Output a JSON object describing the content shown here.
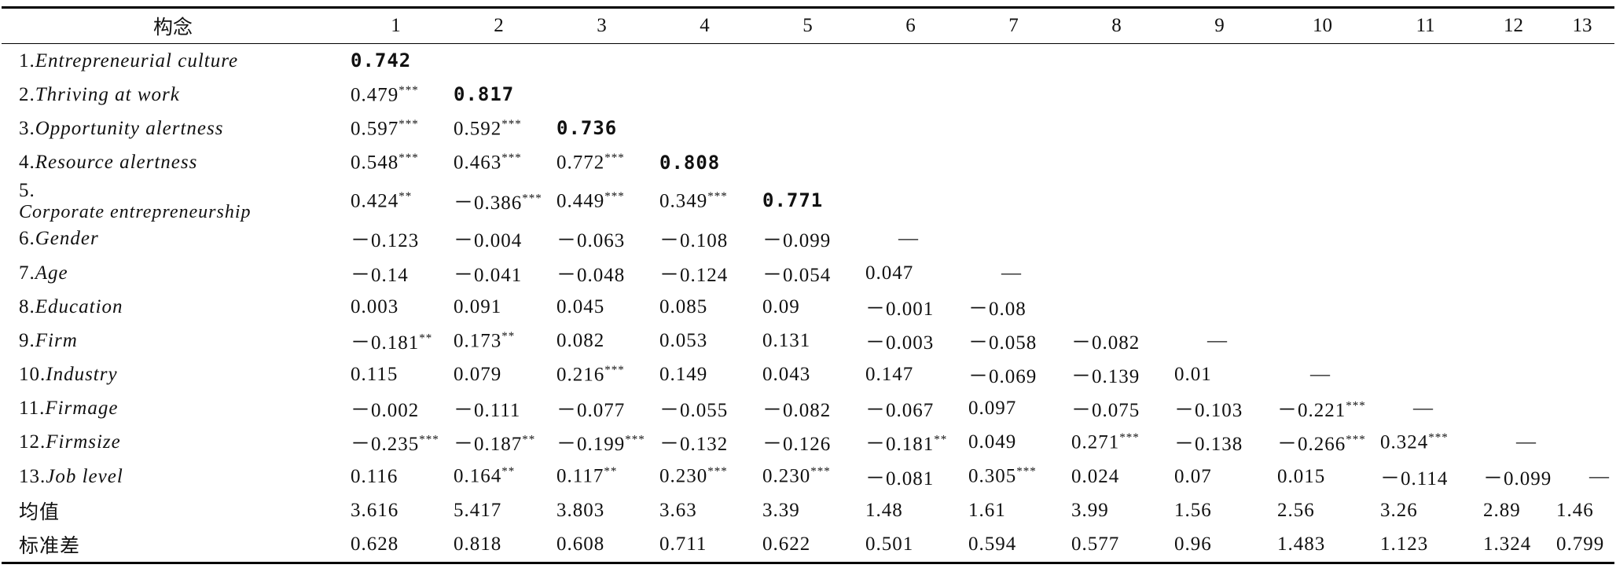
{
  "table": {
    "header": [
      "构念",
      "1",
      "2",
      "3",
      "4",
      "5",
      "6",
      "7",
      "8",
      "9",
      "10",
      "11",
      "12",
      "13"
    ],
    "rows": [
      {
        "num": "1.",
        "name": "Entrepreneurial culture",
        "cells": [
          {
            "text": "0.742",
            "bold": true
          }
        ]
      },
      {
        "num": "2.",
        "name": "Thriving at work",
        "cells": [
          {
            "text": "0.479",
            "sup": "***"
          },
          {
            "text": "0.817",
            "bold": true
          }
        ]
      },
      {
        "num": "3.",
        "name": "Opportunity alertness",
        "cells": [
          {
            "text": "0.597",
            "sup": "***"
          },
          {
            "text": "0.592",
            "sup": "***"
          },
          {
            "text": "0.736",
            "bold": true
          }
        ]
      },
      {
        "num": "4.",
        "name": "Resource alertness",
        "cells": [
          {
            "text": "0.548",
            "sup": "***"
          },
          {
            "text": "0.463",
            "sup": "***"
          },
          {
            "text": "0.772",
            "sup": "***"
          },
          {
            "text": "0.808",
            "bold": true
          }
        ]
      },
      {
        "num": "5.",
        "name": "Corporate entrepreneurship",
        "cells": [
          {
            "text": "0.424",
            "sup": "**"
          },
          {
            "text": "－0.386",
            "sup": "***"
          },
          {
            "text": "0.449",
            "sup": "***"
          },
          {
            "text": "0.349",
            "sup": "***"
          },
          {
            "text": "0.771",
            "bold": true
          }
        ]
      },
      {
        "num": "6.",
        "name": "Gender",
        "cells": [
          {
            "text": "－0.123"
          },
          {
            "text": "－0.004"
          },
          {
            "text": "－0.063"
          },
          {
            "text": "－0.108"
          },
          {
            "text": "－0.099"
          },
          {
            "text": "—"
          }
        ]
      },
      {
        "num": "7.",
        "name": "Age",
        "cells": [
          {
            "text": "－0.14"
          },
          {
            "text": "－0.041"
          },
          {
            "text": "－0.048"
          },
          {
            "text": "－0.124"
          },
          {
            "text": "－0.054"
          },
          {
            "text": "0.047"
          },
          {
            "text": "—"
          }
        ]
      },
      {
        "num": "8.",
        "name": "Education",
        "cells": [
          {
            "text": "0.003"
          },
          {
            "text": "0.091"
          },
          {
            "text": "0.045"
          },
          {
            "text": "0.085"
          },
          {
            "text": "0.09"
          },
          {
            "text": "－0.001"
          },
          {
            "text": "－0.08"
          }
        ]
      },
      {
        "num": "9.",
        "name": "Firm",
        "cells": [
          {
            "text": "－0.181",
            "sup": "**"
          },
          {
            "text": "0.173",
            "sup": "**"
          },
          {
            "text": "0.082"
          },
          {
            "text": "0.053"
          },
          {
            "text": "0.131"
          },
          {
            "text": "－0.003"
          },
          {
            "text": "－0.058"
          },
          {
            "text": "－0.082"
          },
          {
            "text": "—"
          }
        ]
      },
      {
        "num": "10.",
        "name": "Industry",
        "cells": [
          {
            "text": "0.115"
          },
          {
            "text": "0.079"
          },
          {
            "text": "0.216",
            "sup": "***"
          },
          {
            "text": "0.149"
          },
          {
            "text": "0.043"
          },
          {
            "text": "0.147"
          },
          {
            "text": "－0.069"
          },
          {
            "text": "－0.139"
          },
          {
            "text": "0.01"
          },
          {
            "text": "—"
          }
        ]
      },
      {
        "num": "11.",
        "name": "Firmage",
        "cells": [
          {
            "text": "－0.002"
          },
          {
            "text": "－0.111"
          },
          {
            "text": "－0.077"
          },
          {
            "text": "－0.055"
          },
          {
            "text": "－0.082"
          },
          {
            "text": "－0.067"
          },
          {
            "text": "0.097"
          },
          {
            "text": "－0.075"
          },
          {
            "text": "－0.103"
          },
          {
            "text": "－0.221",
            "sup": "***"
          },
          {
            "text": "—"
          }
        ]
      },
      {
        "num": "12.",
        "name": "Firmsize",
        "cells": [
          {
            "text": "－0.235",
            "sup": "***"
          },
          {
            "text": "－0.187",
            "sup": "**"
          },
          {
            "text": "－0.199",
            "sup": "***"
          },
          {
            "text": "－0.132"
          },
          {
            "text": "－0.126"
          },
          {
            "text": "－0.181",
            "sup": "**"
          },
          {
            "text": "0.049"
          },
          {
            "text": "0.271",
            "sup": "***"
          },
          {
            "text": "－0.138"
          },
          {
            "text": "－0.266",
            "sup": "***"
          },
          {
            "text": "0.324",
            "sup": "***"
          },
          {
            "text": "—"
          }
        ]
      },
      {
        "num": "13.",
        "name": "Job level",
        "cells": [
          {
            "text": "0.116"
          },
          {
            "text": "0.164",
            "sup": "**"
          },
          {
            "text": "0.117",
            "sup": "**"
          },
          {
            "text": "0.230",
            "sup": "***"
          },
          {
            "text": "0.230",
            "sup": "***"
          },
          {
            "text": "－0.081"
          },
          {
            "text": "0.305",
            "sup": "***"
          },
          {
            "text": "0.024"
          },
          {
            "text": "0.07"
          },
          {
            "text": "0.015"
          },
          {
            "text": "－0.114"
          },
          {
            "text": "－0.099"
          },
          {
            "text": "—"
          }
        ]
      },
      {
        "label": "均值",
        "cells": [
          {
            "text": "3.616"
          },
          {
            "text": "5.417"
          },
          {
            "text": "3.803"
          },
          {
            "text": "3.63"
          },
          {
            "text": "3.39"
          },
          {
            "text": "1.48"
          },
          {
            "text": "1.61"
          },
          {
            "text": "3.99"
          },
          {
            "text": "1.56"
          },
          {
            "text": "2.56"
          },
          {
            "text": "3.26"
          },
          {
            "text": "2.89"
          },
          {
            "text": "1.46"
          }
        ]
      },
      {
        "label": "标准差",
        "cells": [
          {
            "text": "0.628"
          },
          {
            "text": "0.818"
          },
          {
            "text": "0.608"
          },
          {
            "text": "0.711"
          },
          {
            "text": "0.622"
          },
          {
            "text": "0.501"
          },
          {
            "text": "0.594"
          },
          {
            "text": "0.577"
          },
          {
            "text": "0.96"
          },
          {
            "text": "1.483"
          },
          {
            "text": "1.123"
          },
          {
            "text": "1.324"
          },
          {
            "text": "0.799"
          }
        ]
      }
    ]
  }
}
